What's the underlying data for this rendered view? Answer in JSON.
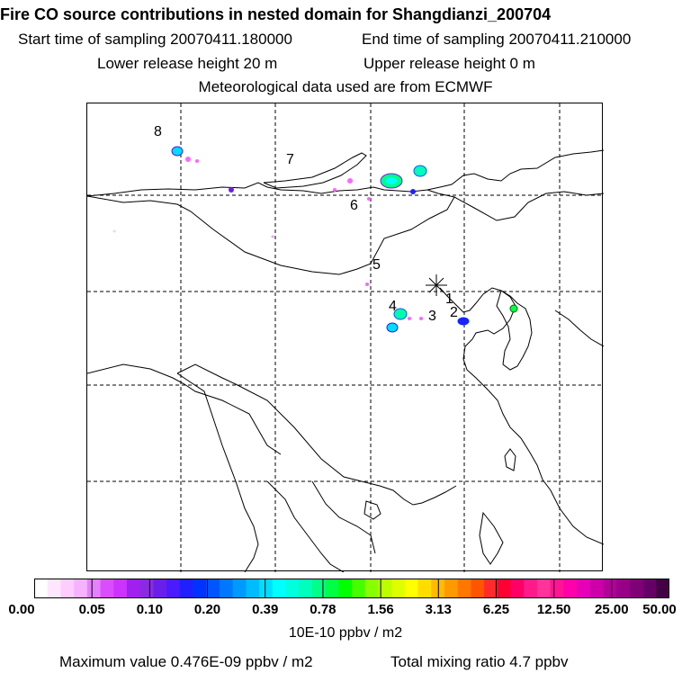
{
  "header": {
    "title": "Fire CO source contributions in nested domain for Shangdianzi_200704",
    "start": "Start time of sampling 20070411.180000",
    "end": "End time of sampling 20070411.210000",
    "lower": "Lower release height   20 m",
    "upper": "Upper release height    0 m",
    "met": "Meteorological data used are from ECMWF"
  },
  "map": {
    "region_labels": [
      "1",
      "2",
      "3",
      "4",
      "5",
      "6",
      "7",
      "8"
    ],
    "station_marker": "asterisk-marker"
  },
  "legend": {
    "ticks": [
      "0.00",
      "0.05",
      "0.10",
      "0.20",
      "0.39",
      "0.78",
      "1.56",
      "3.13",
      "6.25",
      "12.50",
      "25.00",
      "50.00"
    ],
    "colors": [
      "#ffffff",
      "#ffe6ff",
      "#ffccff",
      "#f5b3ff",
      "#e680ff",
      "#d94dff",
      "#cc33ff",
      "#a020f0",
      "#8a2be2",
      "#6a1fe8",
      "#4b1aff",
      "#2020ff",
      "#0033ff",
      "#0055ff",
      "#0077ff",
      "#0099ff",
      "#00bbff",
      "#00ddff",
      "#00ffff",
      "#00ffdd",
      "#00ffbb",
      "#00ff88",
      "#00ff44",
      "#00ff00",
      "#44ff00",
      "#88ff00",
      "#bbff00",
      "#ddff00",
      "#ffff00",
      "#ffdd00",
      "#ffbb00",
      "#ff9900",
      "#ff7700",
      "#ff5500",
      "#ff2a2a",
      "#ff0033",
      "#ff0066",
      "#ff1a8c",
      "#ff3399",
      "#ff1493",
      "#ff00aa",
      "#e600b8",
      "#cc00aa",
      "#b30099",
      "#990088",
      "#800077",
      "#660066",
      "#440044"
    ],
    "units": "10E-10 ppbv / m2"
  },
  "footer": {
    "max_value": "Maximum value  0.476E-09 ppbv / m2",
    "total_mixing": "Total mixing ratio        4.7 ppbv"
  }
}
